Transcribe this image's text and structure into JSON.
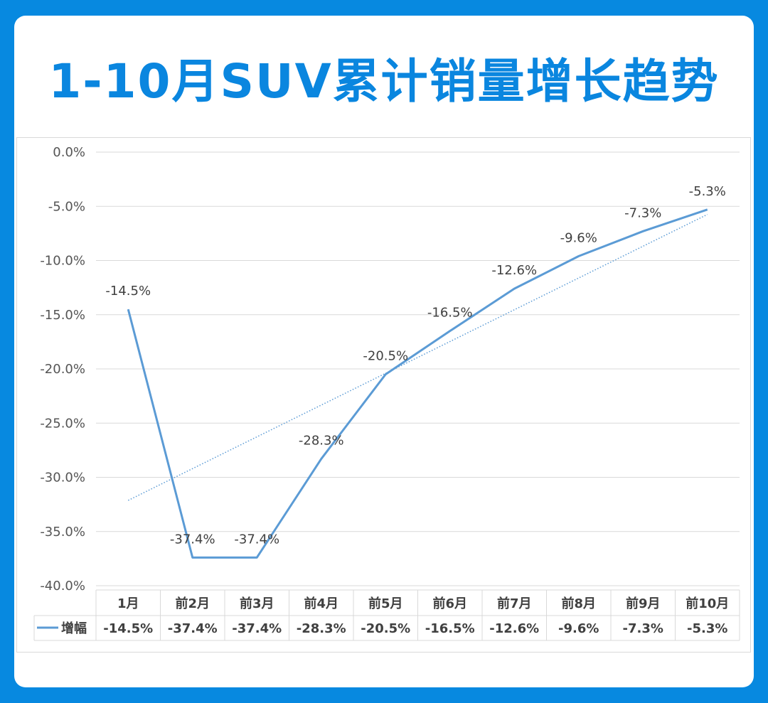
{
  "title": "1-10月SUV累计销量增长趋势",
  "chart_data": {
    "type": "line",
    "title": "1-10月SUV累计销量增长趋势",
    "categories": [
      "1月",
      "前2月",
      "前3月",
      "前4月",
      "前5月",
      "前6月",
      "前7月",
      "前8月",
      "前9月",
      "前10月"
    ],
    "series": [
      {
        "name": "增幅",
        "values": [
          -14.5,
          -37.4,
          -37.4,
          -28.3,
          -20.5,
          -16.5,
          -12.6,
          -9.6,
          -7.3,
          -5.3
        ],
        "labels": [
          "-14.5%",
          "-37.4%",
          "-37.4%",
          "-28.3%",
          "-20.5%",
          "-16.5%",
          "-12.6%",
          "-9.6%",
          "-7.3%",
          "-5.3%"
        ],
        "color": "#5b9bd5"
      }
    ],
    "trendline": {
      "type": "linear",
      "style": "dotted",
      "color": "#5b9bd5"
    },
    "ylim": [
      -40,
      0
    ],
    "yticks": [
      0,
      -5,
      -10,
      -15,
      -20,
      -25,
      -30,
      -35,
      -40
    ],
    "ytick_labels": [
      "0.0%",
      "-5.0%",
      "-10.0%",
      "-15.0%",
      "-20.0%",
      "-25.0%",
      "-30.0%",
      "-35.0%",
      "-40.0%"
    ],
    "grid": true,
    "legend": "data-table-bottom",
    "xlabel": "",
    "ylabel": ""
  },
  "colors": {
    "frame": "#0789e0",
    "title": "#0a86df"
  }
}
